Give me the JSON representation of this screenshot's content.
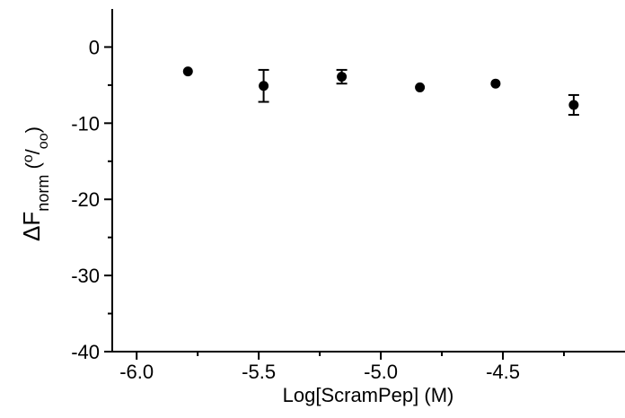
{
  "chart_data": {
    "type": "scatter",
    "xlabel": "Log[ScramPep] (M)",
    "ylabel": [
      "ΔF",
      "norm",
      " (",
      "o",
      "/",
      "oo",
      ")"
    ],
    "x": [
      -5.79,
      -5.48,
      -5.16,
      -4.84,
      -4.53,
      -4.21
    ],
    "values": [
      -3.2,
      -5.1,
      -3.9,
      -5.3,
      -4.8,
      -7.6
    ],
    "errors": [
      null,
      2.1,
      0.9,
      null,
      null,
      1.3
    ],
    "color": "#000000",
    "xlim": [
      -6.1,
      -4.0
    ],
    "xticks": [
      {
        "value": -6.0,
        "label": "-6.0"
      },
      {
        "value": -5.5,
        "label": "-5.5"
      },
      {
        "value": -5.0,
        "label": "-5.0"
      },
      {
        "value": -4.5,
        "label": "-4.5"
      }
    ],
    "minor_xticks": [
      -5.75,
      -5.25,
      -4.75,
      -4.25
    ],
    "ylim": [
      -40,
      5
    ],
    "yticks": [
      0,
      -10,
      -20,
      -30,
      -40
    ],
    "minor_yticks": [
      -5,
      -15,
      -25,
      -35
    ]
  }
}
